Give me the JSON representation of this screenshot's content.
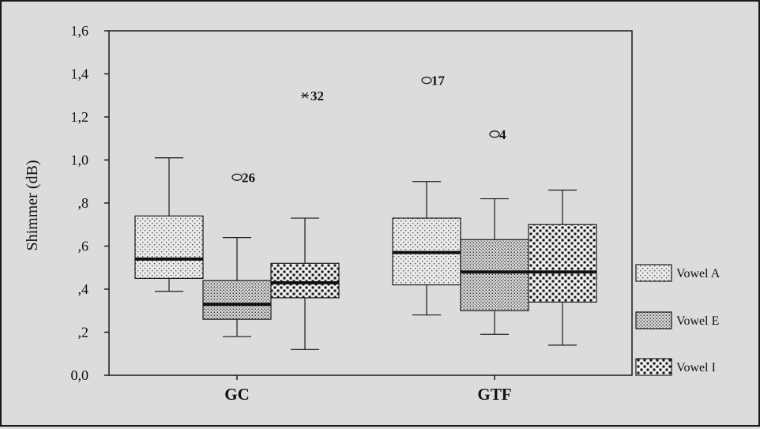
{
  "chart_data": {
    "type": "boxplot",
    "ylabel": "Shimmer (dB)",
    "ylim": [
      0.0,
      1.6
    ],
    "y_ticks": [
      0.0,
      0.2,
      0.4,
      0.6,
      0.8,
      1.0,
      1.2,
      1.4,
      1.6
    ],
    "y_tick_labels": [
      "0,0",
      ",2",
      ",4",
      ",6",
      ",8",
      "1,0",
      "1,2",
      "1,4",
      "1,6"
    ],
    "categories": [
      "GC",
      "GTF"
    ],
    "legend_position": "right",
    "series": [
      {
        "name": "Vowel A",
        "pattern": "light-dots",
        "boxes": [
          {
            "whisker_low": 0.39,
            "q1": 0.45,
            "median": 0.54,
            "q3": 0.74,
            "whisker_high": 1.01
          },
          {
            "whisker_low": 0.28,
            "q1": 0.42,
            "median": 0.57,
            "q3": 0.73,
            "whisker_high": 0.9
          }
        ]
      },
      {
        "name": "Vowel E",
        "pattern": "medium-dots",
        "boxes": [
          {
            "whisker_low": 0.18,
            "q1": 0.26,
            "median": 0.33,
            "q3": 0.44,
            "whisker_high": 0.64
          },
          {
            "whisker_low": 0.19,
            "q1": 0.3,
            "median": 0.48,
            "q3": 0.63,
            "whisker_high": 0.82
          }
        ]
      },
      {
        "name": "Vowel I",
        "pattern": "dense-dots",
        "boxes": [
          {
            "whisker_low": 0.12,
            "q1": 0.36,
            "median": 0.43,
            "q3": 0.52,
            "whisker_high": 0.73
          },
          {
            "whisker_low": 0.14,
            "q1": 0.34,
            "median": 0.48,
            "q3": 0.7,
            "whisker_high": 0.86
          }
        ]
      }
    ],
    "outliers": [
      {
        "category": "GC",
        "series": "Vowel E",
        "value": 0.92,
        "label": "26",
        "marker": "circle"
      },
      {
        "category": "GC",
        "series": "Vowel I",
        "value": 1.3,
        "label": "32",
        "marker": "star"
      },
      {
        "category": "GTF",
        "series": "Vowel A",
        "value": 1.37,
        "label": "17",
        "marker": "circle"
      },
      {
        "category": "GTF",
        "series": "Vowel E",
        "value": 1.12,
        "label": "4",
        "marker": "circle"
      }
    ]
  }
}
